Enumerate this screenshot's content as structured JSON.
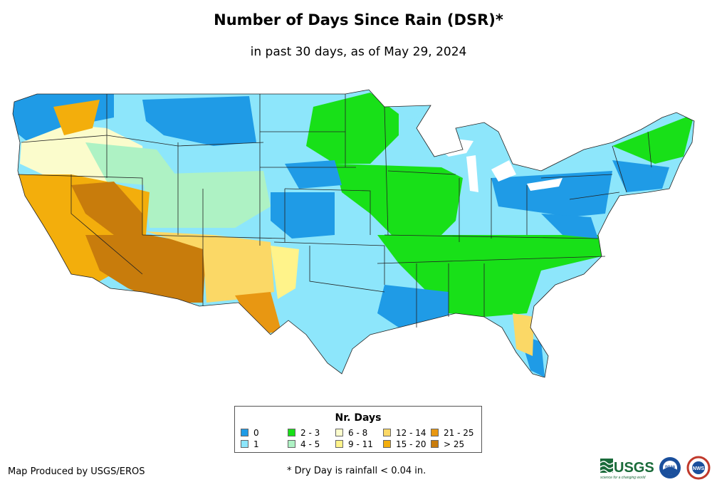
{
  "title": "Number of Days Since Rain (DSR)*",
  "subtitle": "in past 30 days, as of May 29, 2024",
  "legend": {
    "title": "Nr. Days",
    "items": [
      {
        "label": "0",
        "color": "#1f9be6"
      },
      {
        "label": "1",
        "color": "#8de6fb"
      },
      {
        "label": "2 - 3",
        "color": "#18e018"
      },
      {
        "label": "4 - 5",
        "color": "#aef2c4"
      },
      {
        "label": "6 - 8",
        "color": "#fbfccc"
      },
      {
        "label": "9 - 11",
        "color": "#fff38a"
      },
      {
        "label": "12 - 14",
        "color": "#fbd866"
      },
      {
        "label": "15 - 20",
        "color": "#f3ae0c"
      },
      {
        "label": "21 - 25",
        "color": "#e89712"
      },
      {
        "label": "> 25",
        "color": "#c87c0c"
      }
    ]
  },
  "credit": "Map Produced by USGS/EROS",
  "footnote": "* Dry Day is rainfall < 0.04 in.",
  "logos": {
    "usgs": "USGS",
    "usgs_tagline": "science for a changing world",
    "noaa": "noaa",
    "nws": "NWS"
  }
}
